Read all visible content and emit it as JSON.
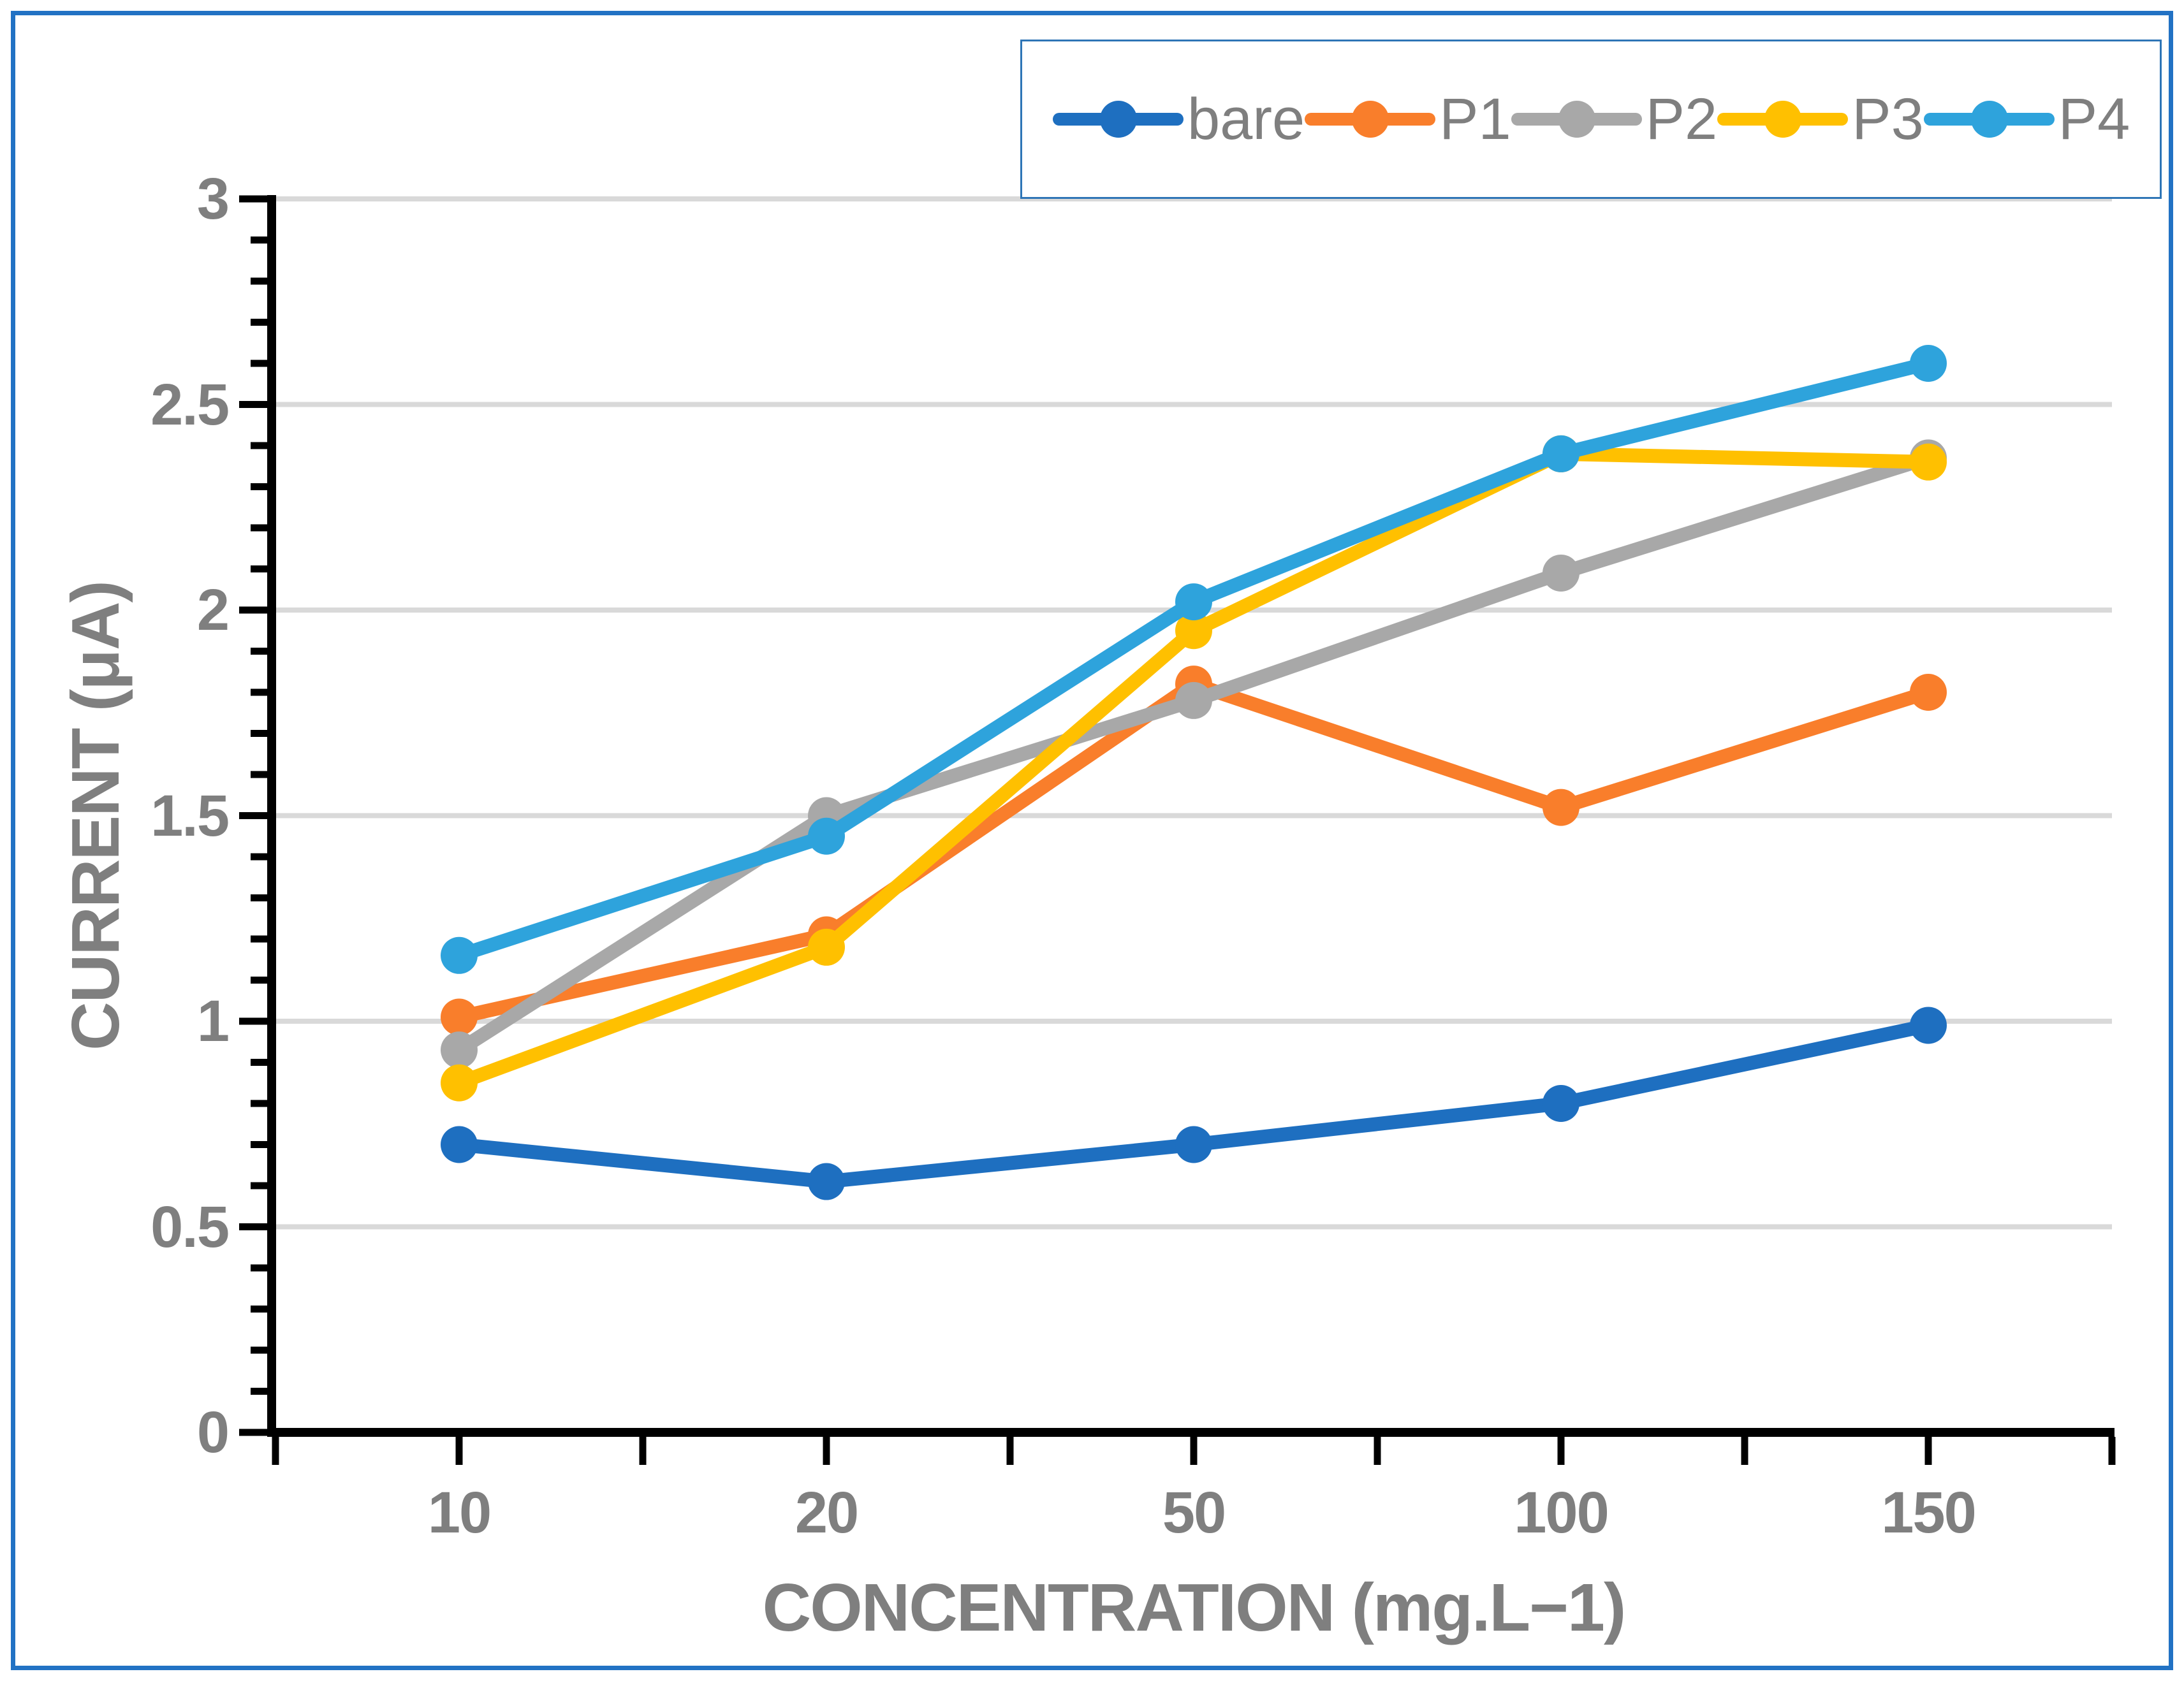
{
  "chart_data": {
    "type": "line",
    "categories": [
      "10",
      "20",
      "50",
      "100",
      "150"
    ],
    "series": [
      {
        "name": "bare",
        "color": "#1E6FC0",
        "values": [
          0.7,
          0.61,
          0.7,
          0.8,
          0.99
        ]
      },
      {
        "name": "P1",
        "color": "#F97E2B",
        "values": [
          1.01,
          1.21,
          1.82,
          1.52,
          1.8
        ]
      },
      {
        "name": "P2",
        "color": "#A8A8A8",
        "values": [
          0.93,
          1.5,
          1.78,
          2.09,
          2.37
        ]
      },
      {
        "name": "P3",
        "color": "#FFC000",
        "values": [
          0.85,
          1.18,
          1.95,
          2.38,
          2.36
        ]
      },
      {
        "name": "P4",
        "color": "#2EA3DC",
        "values": [
          1.16,
          1.45,
          2.02,
          2.38,
          2.6
        ]
      }
    ],
    "xlabel": "CONCENTRATION (mg.L−1)",
    "ylabel": "CURRENT (μA)",
    "ylim": [
      0,
      3
    ],
    "y_tick_step": 0.5,
    "y_minor_tick_step": 0.1,
    "y_tick_labels": [
      "0",
      "0.5",
      "1",
      "1.5",
      "2",
      "2.5",
      "3"
    ],
    "grid": "horizontal-major",
    "legend_position": "top-right",
    "marker": "circle",
    "line_style": "straight"
  },
  "styles": {
    "grid_color": "#D9D9D9",
    "axis_color": "#000000",
    "text_color": "#7F7F7F",
    "figure_border_color": "#2272C4",
    "legend_border_color": "#2E75B6"
  }
}
